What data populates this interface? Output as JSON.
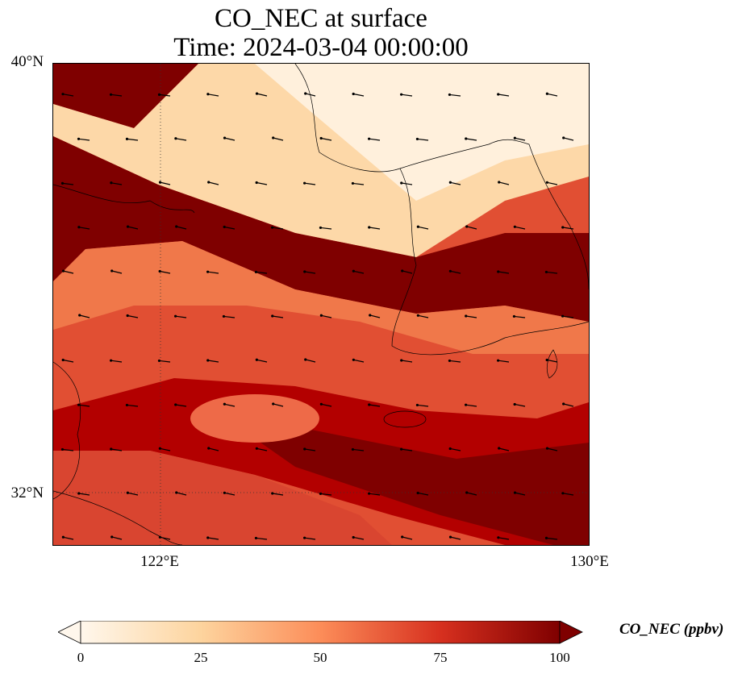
{
  "title_line1": "CO_NEC at surface",
  "title_line2": "Time: 2024-03-04 00:00:00",
  "lat_labels": [
    "40°N",
    "32°N"
  ],
  "lon_labels": [
    "122°E",
    "130°E"
  ],
  "colorbar": {
    "label": "CO_NEC (ppbv)",
    "ticks": [
      "0",
      "25",
      "50",
      "75",
      "100"
    ],
    "min": 0,
    "max": 100,
    "extend": "both",
    "colormap": [
      "#fff7ec",
      "#fdd49e",
      "#fc8d59",
      "#d7301f",
      "#7f0000"
    ]
  },
  "map": {
    "projection": "lat-lon",
    "lon_range": [
      120,
      130
    ],
    "lat_range": [
      31,
      40
    ],
    "gridlines": "dotted",
    "overlay": "wind-vectors",
    "coastlines": true
  }
}
